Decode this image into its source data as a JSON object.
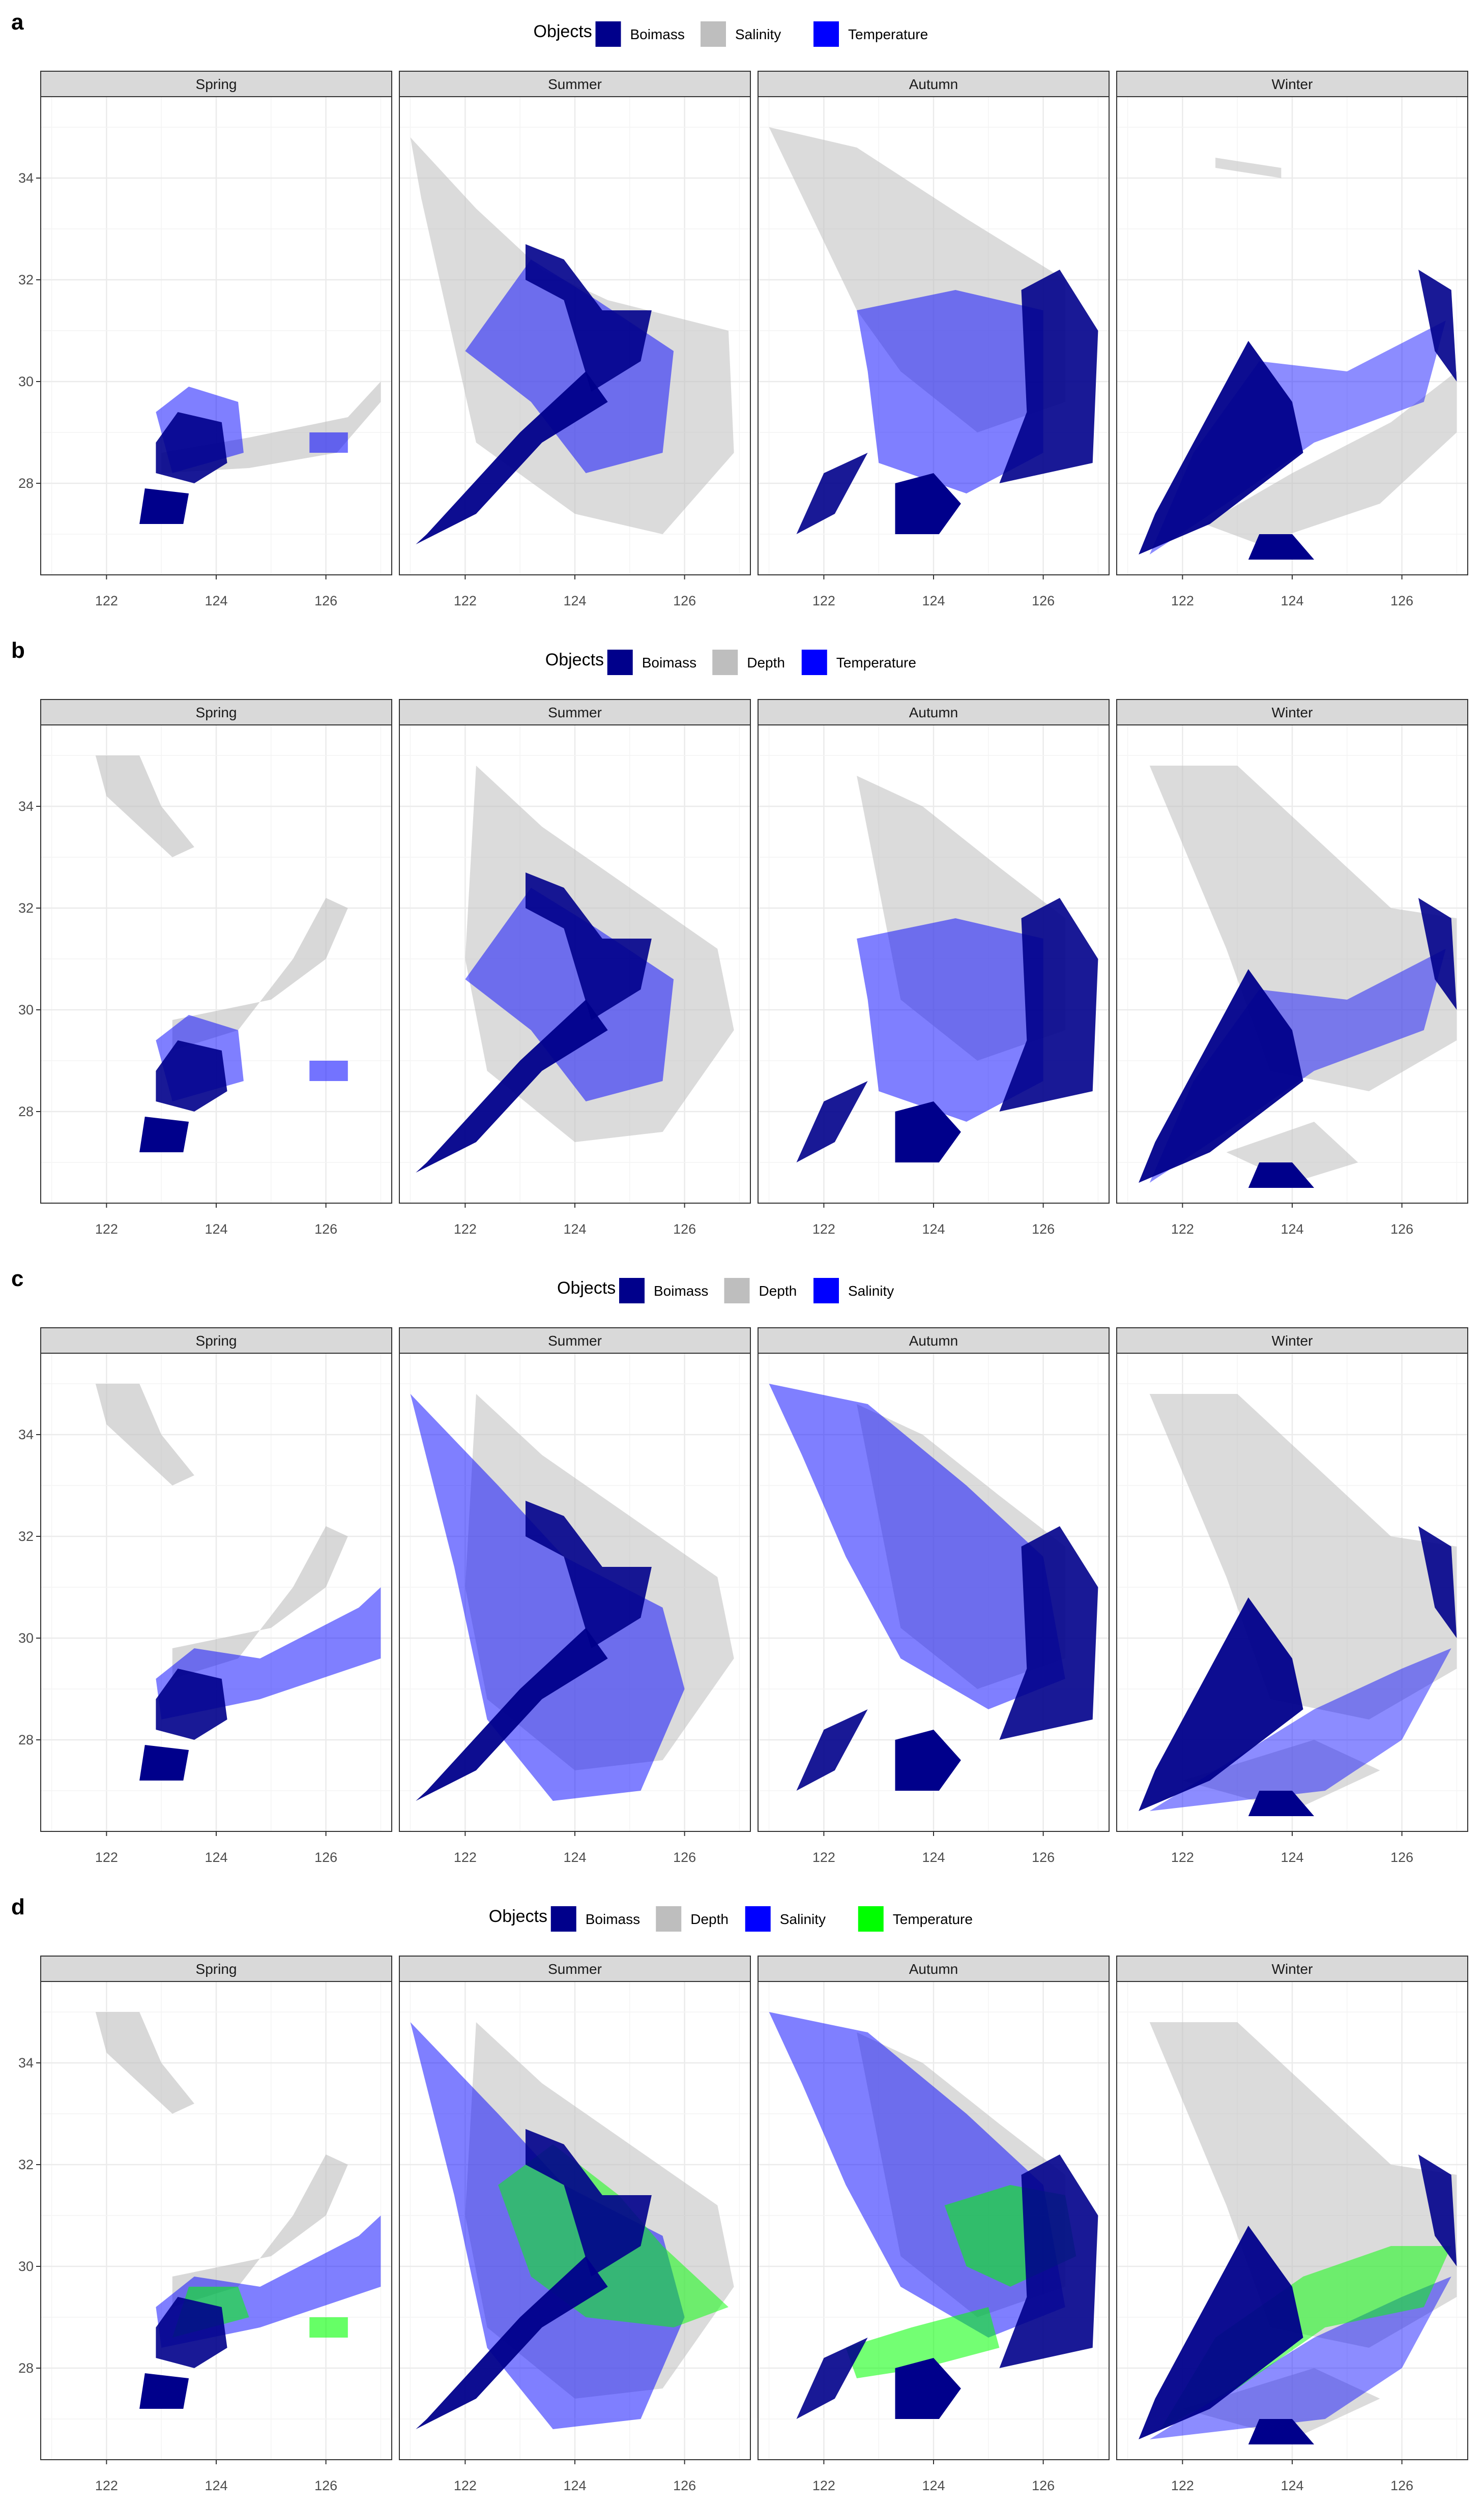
{
  "chart_data": [
    {
      "label": "a",
      "type": "area",
      "legend": {
        "title": "Objects",
        "position": "top",
        "items": [
          {
            "name": "Boimass",
            "color": "#00008B"
          },
          {
            "name": "Salinity",
            "color": "#BEBEBE"
          },
          {
            "name": "Temperature",
            "color": "#0000FF"
          }
        ]
      },
      "facets": [
        "Spring",
        "Summer",
        "Autumn",
        "Winter"
      ],
      "xlim": [
        120.8,
        127.2
      ],
      "ylim": [
        26.2,
        35.6
      ],
      "xticks": [
        122,
        124,
        126
      ],
      "yticks": [
        28,
        30,
        32,
        34
      ],
      "grid": true
    },
    {
      "label": "b",
      "type": "area",
      "legend": {
        "title": "Objects",
        "position": "top",
        "items": [
          {
            "name": "Boimass",
            "color": "#00008B"
          },
          {
            "name": "Depth",
            "color": "#BEBEBE"
          },
          {
            "name": "Temperature",
            "color": "#0000FF"
          }
        ]
      },
      "facets": [
        "Spring",
        "Summer",
        "Autumn",
        "Winter"
      ],
      "xlim": [
        120.8,
        127.2
      ],
      "ylim": [
        26.2,
        35.6
      ],
      "xticks": [
        122,
        124,
        126
      ],
      "yticks": [
        28,
        30,
        32,
        34
      ],
      "grid": true
    },
    {
      "label": "c",
      "type": "area",
      "legend": {
        "title": "Objects",
        "position": "top",
        "items": [
          {
            "name": "Boimass",
            "color": "#00008B"
          },
          {
            "name": "Depth",
            "color": "#BEBEBE"
          },
          {
            "name": "Salinity",
            "color": "#0000FF"
          }
        ]
      },
      "facets": [
        "Spring",
        "Summer",
        "Autumn",
        "Winter"
      ],
      "xlim": [
        120.8,
        127.2
      ],
      "ylim": [
        26.2,
        35.6
      ],
      "xticks": [
        122,
        124,
        126
      ],
      "yticks": [
        28,
        30,
        32,
        34
      ],
      "grid": true
    },
    {
      "label": "d",
      "type": "area",
      "legend": {
        "title": "Objects",
        "position": "top",
        "items": [
          {
            "name": "Boimass",
            "color": "#00008B"
          },
          {
            "name": "Depth",
            "color": "#BEBEBE"
          },
          {
            "name": "Salinity",
            "color": "#0000FF"
          },
          {
            "name": "Temperature",
            "color": "#00FF00"
          }
        ]
      },
      "facets": [
        "Spring",
        "Summer",
        "Autumn",
        "Winter"
      ],
      "xlim": [
        120.8,
        127.2
      ],
      "ylim": [
        26.2,
        35.6
      ],
      "xticks": [
        122,
        124,
        126
      ],
      "yticks": [
        28,
        30,
        32,
        34
      ],
      "grid": true
    }
  ]
}
